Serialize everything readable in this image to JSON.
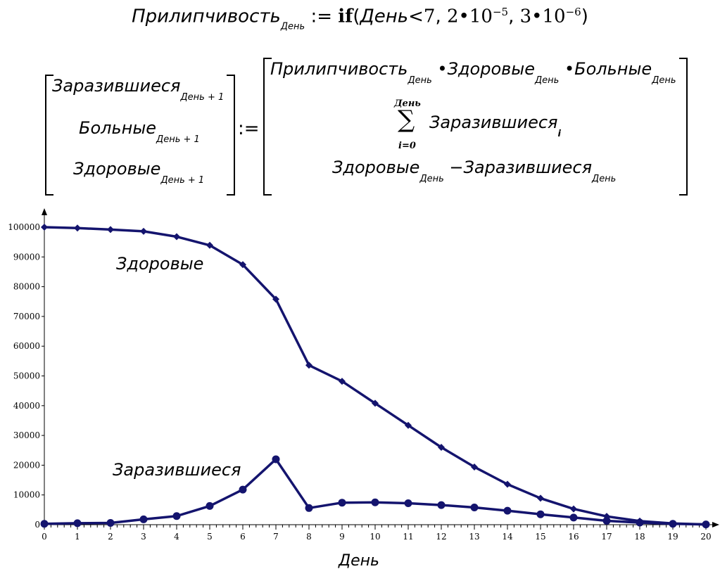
{
  "formula1": {
    "lhs": "Прилипчивость",
    "lhs_sub": "День",
    "assign": ":=",
    "keyword": "if",
    "open": "(",
    "cond_var": "День",
    "cond_op": "<",
    "cond_val": "7",
    "sep1": ",",
    "a_coef": "2",
    "dot": "•",
    "a_base": "10",
    "a_exp": "−5",
    "sep2": ",",
    "b_coef": "3",
    "b_base": "10",
    "b_exp": "−6",
    "close": ")"
  },
  "formula2": {
    "lhs": [
      {
        "name": "Заразившиеся",
        "sub": "День + 1"
      },
      {
        "name": "Больные",
        "sub": "День + 1"
      },
      {
        "name": "Здоровые",
        "sub": "День + 1"
      }
    ],
    "assign": ":=",
    "rhs_row1": {
      "a": "Прилипчивость",
      "a_sub": "День",
      "dot": "•",
      "b": "Здоровые",
      "b_sub": "День",
      "c": "Больные",
      "c_sub": "День"
    },
    "rhs_row2": {
      "upper": "День",
      "sigma": "∑",
      "lower": "i=0",
      "term": "Заразившиеся",
      "term_sub": "i"
    },
    "rhs_row3": {
      "a": "Здоровые",
      "a_sub": "День",
      "minus": "−",
      "b": "Заразившиеся",
      "b_sub": "День"
    }
  },
  "chart_data": {
    "type": "line",
    "title": "",
    "xlabel": "День",
    "ylabel": "",
    "xlim": [
      0,
      20
    ],
    "ylim": [
      0,
      100000
    ],
    "x": [
      0,
      1,
      2,
      3,
      4,
      5,
      6,
      7,
      8,
      9,
      10,
      11,
      12,
      13,
      14,
      15,
      16,
      17,
      18,
      19,
      20
    ],
    "x_ticks": [
      "0",
      "1",
      "2",
      "3",
      "4",
      "5",
      "6",
      "7",
      "8",
      "9",
      "10",
      "11",
      "12",
      "13",
      "14",
      "15",
      "16",
      "17",
      "18",
      "19",
      "20"
    ],
    "y_ticks": [
      "0",
      "10000",
      "20000",
      "30000",
      "40000",
      "50000",
      "60000",
      "70000",
      "80000",
      "90000",
      "100000"
    ],
    "grid": false,
    "line_color": "#14146e",
    "series": [
      {
        "name": "Здоровые",
        "marker": "diamond",
        "values": [
          100000,
          99700,
          99200,
          98600,
          96800,
          93900,
          87400,
          75800,
          53600,
          48200,
          40800,
          33400,
          26000,
          19400,
          13600,
          8900,
          5300,
          2800,
          1200,
          400,
          100
        ]
      },
      {
        "name": "Заразившиеся",
        "marker": "circle",
        "values": [
          300,
          500,
          600,
          1800,
          2900,
          6300,
          11800,
          22000,
          5600,
          7400,
          7500,
          7200,
          6600,
          5800,
          4700,
          3500,
          2400,
          1300,
          700,
          300,
          100
        ]
      }
    ]
  }
}
